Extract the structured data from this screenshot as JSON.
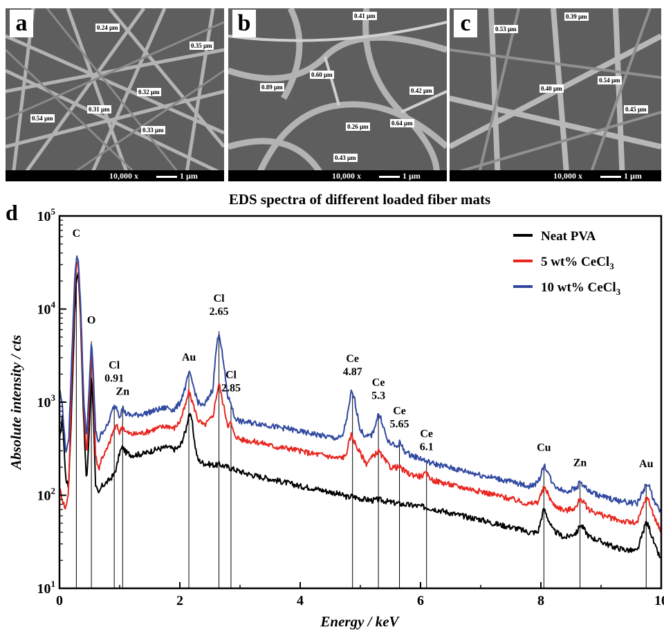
{
  "sem_panels": [
    {
      "letter": "a",
      "magnification": "10,000 x",
      "scale": "1 µm",
      "measurements": [
        "0.24 µm",
        "0.35 µm",
        "0.32 µm",
        "0.31 µm",
        "0.54 µm",
        "0.33 µm"
      ]
    },
    {
      "letter": "b",
      "magnification": "10,000 x",
      "scale": "1 µm",
      "measurements": [
        "0.41 µm",
        "0.60 µm",
        "0.89 µm",
        "0.42 µm",
        "0.64 µm",
        "0.26 µm",
        "0.43 µm"
      ]
    },
    {
      "letter": "c",
      "magnification": "10,000 x",
      "scale": "1 µm",
      "measurements": [
        "0.53 µm",
        "0.39 µm",
        "0.40 µm",
        "0.54 µm",
        "0.45 µm"
      ]
    }
  ],
  "chart_data": {
    "type": "line",
    "panel_letter": "d",
    "title": "EDS spectra of different loaded fiber mats",
    "xlabel": "Energy / keV",
    "ylabel": "Absolute intensity / cts",
    "xlim": [
      0,
      10
    ],
    "ylim": [
      10,
      100000
    ],
    "yscale": "log",
    "xticks": [
      "0",
      "2",
      "4",
      "6",
      "8",
      "10"
    ],
    "yticks": [
      {
        "base": "10",
        "exp": "1"
      },
      {
        "base": "10",
        "exp": "2"
      },
      {
        "base": "10",
        "exp": "3"
      },
      {
        "base": "10",
        "exp": "4"
      },
      {
        "base": "10",
        "exp": "5"
      }
    ],
    "legend_position": "top-right",
    "series": [
      {
        "name": "Neat PVA",
        "name_sub": "",
        "color": "#000000",
        "points": [
          [
            0.0,
            380
          ],
          [
            0.05,
            700
          ],
          [
            0.1,
            160
          ],
          [
            0.15,
            120
          ],
          [
            0.2,
            800
          ],
          [
            0.25,
            8000
          ],
          [
            0.28,
            20000
          ],
          [
            0.31,
            26000
          ],
          [
            0.35,
            8000
          ],
          [
            0.4,
            700
          ],
          [
            0.45,
            130
          ],
          [
            0.5,
            600
          ],
          [
            0.53,
            2000
          ],
          [
            0.56,
            900
          ],
          [
            0.6,
            130
          ],
          [
            0.65,
            100
          ],
          [
            0.7,
            125
          ],
          [
            0.8,
            140
          ],
          [
            0.9,
            165
          ],
          [
            0.95,
            200
          ],
          [
            1.0,
            290
          ],
          [
            1.05,
            330
          ],
          [
            1.1,
            290
          ],
          [
            1.2,
            270
          ],
          [
            1.4,
            280
          ],
          [
            1.6,
            310
          ],
          [
            1.8,
            330
          ],
          [
            1.9,
            310
          ],
          [
            2.0,
            330
          ],
          [
            2.1,
            500
          ],
          [
            2.15,
            750
          ],
          [
            2.2,
            650
          ],
          [
            2.25,
            350
          ],
          [
            2.3,
            240
          ],
          [
            2.4,
            220
          ],
          [
            2.6,
            210
          ],
          [
            2.65,
            215
          ],
          [
            2.8,
            200
          ],
          [
            3.0,
            180
          ],
          [
            3.2,
            165
          ],
          [
            3.4,
            155
          ],
          [
            3.6,
            145
          ],
          [
            3.8,
            135
          ],
          [
            4.0,
            125
          ],
          [
            4.2,
            120
          ],
          [
            4.4,
            112
          ],
          [
            4.6,
            105
          ],
          [
            4.8,
            95
          ],
          [
            4.85,
            98
          ],
          [
            5.0,
            92
          ],
          [
            5.2,
            88
          ],
          [
            5.3,
            90
          ],
          [
            5.5,
            84
          ],
          [
            5.7,
            80
          ],
          [
            6.0,
            76
          ],
          [
            6.2,
            72
          ],
          [
            6.4,
            67
          ],
          [
            6.6,
            62
          ],
          [
            6.8,
            58
          ],
          [
            7.0,
            55
          ],
          [
            7.2,
            50
          ],
          [
            7.4,
            47
          ],
          [
            7.6,
            44
          ],
          [
            7.8,
            40
          ],
          [
            7.95,
            40
          ],
          [
            8.05,
            72
          ],
          [
            8.1,
            60
          ],
          [
            8.2,
            42
          ],
          [
            8.4,
            35
          ],
          [
            8.6,
            40
          ],
          [
            8.65,
            48
          ],
          [
            8.7,
            45
          ],
          [
            8.8,
            36
          ],
          [
            9.0,
            32
          ],
          [
            9.2,
            28
          ],
          [
            9.4,
            26
          ],
          [
            9.6,
            25
          ],
          [
            9.75,
            52
          ],
          [
            9.8,
            45
          ],
          [
            9.9,
            28
          ],
          [
            10.0,
            20
          ]
        ]
      },
      {
        "name": "5 wt% CeCl",
        "name_sub": "3",
        "color": "#e8251f",
        "points": [
          [
            0.0,
            120
          ],
          [
            0.05,
            90
          ],
          [
            0.1,
            70
          ],
          [
            0.15,
            110
          ],
          [
            0.2,
            1500
          ],
          [
            0.25,
            15000
          ],
          [
            0.28,
            30000
          ],
          [
            0.31,
            32000
          ],
          [
            0.35,
            9000
          ],
          [
            0.4,
            1000
          ],
          [
            0.45,
            260
          ],
          [
            0.5,
            1200
          ],
          [
            0.53,
            4000
          ],
          [
            0.56,
            1800
          ],
          [
            0.6,
            270
          ],
          [
            0.65,
            190
          ],
          [
            0.7,
            250
          ],
          [
            0.8,
            320
          ],
          [
            0.9,
            500
          ],
          [
            0.95,
            560
          ],
          [
            1.0,
            470
          ],
          [
            1.05,
            560
          ],
          [
            1.1,
            480
          ],
          [
            1.2,
            450
          ],
          [
            1.4,
            470
          ],
          [
            1.6,
            520
          ],
          [
            1.8,
            560
          ],
          [
            1.9,
            520
          ],
          [
            2.0,
            620
          ],
          [
            2.1,
            950
          ],
          [
            2.15,
            1300
          ],
          [
            2.2,
            1050
          ],
          [
            2.3,
            650
          ],
          [
            2.4,
            560
          ],
          [
            2.55,
            700
          ],
          [
            2.6,
            1100
          ],
          [
            2.65,
            1600
          ],
          [
            2.7,
            1100
          ],
          [
            2.8,
            560
          ],
          [
            2.85,
            600
          ],
          [
            2.9,
            450
          ],
          [
            3.0,
            400
          ],
          [
            3.2,
            380
          ],
          [
            3.4,
            360
          ],
          [
            3.6,
            330
          ],
          [
            3.8,
            320
          ],
          [
            4.0,
            300
          ],
          [
            4.2,
            280
          ],
          [
            4.4,
            270
          ],
          [
            4.6,
            250
          ],
          [
            4.75,
            260
          ],
          [
            4.85,
            450
          ],
          [
            4.95,
            320
          ],
          [
            5.1,
            220
          ],
          [
            5.3,
            300
          ],
          [
            5.4,
            240
          ],
          [
            5.5,
            200
          ],
          [
            5.65,
            200
          ],
          [
            5.8,
            170
          ],
          [
            6.0,
            160
          ],
          [
            6.1,
            170
          ],
          [
            6.2,
            145
          ],
          [
            6.4,
            135
          ],
          [
            6.6,
            125
          ],
          [
            6.8,
            118
          ],
          [
            7.0,
            110
          ],
          [
            7.2,
            102
          ],
          [
            7.4,
            95
          ],
          [
            7.6,
            88
          ],
          [
            7.8,
            80
          ],
          [
            7.95,
            85
          ],
          [
            8.05,
            120
          ],
          [
            8.1,
            110
          ],
          [
            8.2,
            80
          ],
          [
            8.4,
            68
          ],
          [
            8.6,
            75
          ],
          [
            8.65,
            95
          ],
          [
            8.7,
            85
          ],
          [
            8.8,
            70
          ],
          [
            9.0,
            62
          ],
          [
            9.2,
            56
          ],
          [
            9.4,
            52
          ],
          [
            9.6,
            50
          ],
          [
            9.75,
            95
          ],
          [
            9.8,
            85
          ],
          [
            9.9,
            55
          ],
          [
            10.0,
            40
          ]
        ]
      },
      {
        "name": "10 wt% CeCl",
        "name_sub": "3",
        "color": "#3048a0",
        "points": [
          [
            0.0,
            1400
          ],
          [
            0.05,
            900
          ],
          [
            0.1,
            300
          ],
          [
            0.15,
            350
          ],
          [
            0.2,
            2500
          ],
          [
            0.25,
            20000
          ],
          [
            0.28,
            35000
          ],
          [
            0.31,
            36000
          ],
          [
            0.35,
            12000
          ],
          [
            0.4,
            1200
          ],
          [
            0.45,
            380
          ],
          [
            0.5,
            1800
          ],
          [
            0.53,
            4500
          ],
          [
            0.56,
            2200
          ],
          [
            0.6,
            480
          ],
          [
            0.65,
            380
          ],
          [
            0.7,
            470
          ],
          [
            0.8,
            560
          ],
          [
            0.9,
            900
          ],
          [
            0.95,
            900
          ],
          [
            1.0,
            700
          ],
          [
            1.05,
            880
          ],
          [
            1.1,
            750
          ],
          [
            1.2,
            720
          ],
          [
            1.4,
            750
          ],
          [
            1.6,
            820
          ],
          [
            1.8,
            880
          ],
          [
            1.9,
            820
          ],
          [
            2.0,
            980
          ],
          [
            2.1,
            1500
          ],
          [
            2.15,
            2100
          ],
          [
            2.2,
            1700
          ],
          [
            2.3,
            1000
          ],
          [
            2.4,
            900
          ],
          [
            2.55,
            1400
          ],
          [
            2.6,
            3500
          ],
          [
            2.65,
            5800
          ],
          [
            2.7,
            3500
          ],
          [
            2.8,
            1100
          ],
          [
            2.85,
            1000
          ],
          [
            2.9,
            700
          ],
          [
            3.0,
            620
          ],
          [
            3.2,
            600
          ],
          [
            3.4,
            580
          ],
          [
            3.6,
            540
          ],
          [
            3.8,
            520
          ],
          [
            4.0,
            480
          ],
          [
            4.2,
            460
          ],
          [
            4.4,
            430
          ],
          [
            4.6,
            410
          ],
          [
            4.7,
            420
          ],
          [
            4.8,
            800
          ],
          [
            4.85,
            1300
          ],
          [
            4.9,
            1100
          ],
          [
            5.0,
            500
          ],
          [
            5.1,
            420
          ],
          [
            5.2,
            450
          ],
          [
            5.3,
            750
          ],
          [
            5.35,
            650
          ],
          [
            5.45,
            380
          ],
          [
            5.6,
            330
          ],
          [
            5.65,
            370
          ],
          [
            5.75,
            290
          ],
          [
            5.9,
            260
          ],
          [
            6.0,
            250
          ],
          [
            6.1,
            230
          ],
          [
            6.2,
            220
          ],
          [
            6.4,
            205
          ],
          [
            6.6,
            190
          ],
          [
            6.8,
            178
          ],
          [
            7.0,
            165
          ],
          [
            7.2,
            155
          ],
          [
            7.4,
            145
          ],
          [
            7.6,
            135
          ],
          [
            7.8,
            125
          ],
          [
            7.95,
            135
          ],
          [
            8.05,
            210
          ],
          [
            8.1,
            190
          ],
          [
            8.2,
            130
          ],
          [
            8.4,
            110
          ],
          [
            8.6,
            120
          ],
          [
            8.65,
            140
          ],
          [
            8.7,
            130
          ],
          [
            8.8,
            110
          ],
          [
            9.0,
            98
          ],
          [
            9.2,
            90
          ],
          [
            9.4,
            85
          ],
          [
            9.6,
            82
          ],
          [
            9.75,
            130
          ],
          [
            9.8,
            125
          ],
          [
            9.9,
            80
          ],
          [
            10.0,
            65
          ]
        ]
      }
    ],
    "peak_lines": [
      0.28,
      0.53,
      0.91,
      1.05,
      2.15,
      2.65,
      2.85,
      4.87,
      5.3,
      5.65,
      6.1,
      8.05,
      8.65,
      9.75
    ],
    "annotations": [
      {
        "lines": [
          "C"
        ],
        "x": 0.28,
        "y": 60000
      },
      {
        "lines": [
          "O"
        ],
        "x": 0.53,
        "y": 7000
      },
      {
        "lines": [
          "Cl",
          "0.91"
        ],
        "x": 0.91,
        "y": 2300
      },
      {
        "lines": [
          "Zn"
        ],
        "x": 1.05,
        "y": 1200
      },
      {
        "lines": [
          "Au"
        ],
        "x": 2.15,
        "y": 2800
      },
      {
        "lines": [
          "Cl",
          "2.65"
        ],
        "x": 2.65,
        "y": 12000
      },
      {
        "lines": [
          "Cl",
          "2.85"
        ],
        "x": 2.85,
        "y": 1800
      },
      {
        "lines": [
          "Ce",
          "4.87"
        ],
        "x": 4.87,
        "y": 2700
      },
      {
        "lines": [
          "Ce",
          "5.3"
        ],
        "x": 5.3,
        "y": 1500
      },
      {
        "lines": [
          "Ce",
          "5.65"
        ],
        "x": 5.65,
        "y": 740
      },
      {
        "lines": [
          "Ce",
          "6.1"
        ],
        "x": 6.1,
        "y": 420
      },
      {
        "lines": [
          "Cu"
        ],
        "x": 8.05,
        "y": 300
      },
      {
        "lines": [
          "Zn"
        ],
        "x": 8.65,
        "y": 205
      },
      {
        "lines": [
          "Au"
        ],
        "x": 9.75,
        "y": 200
      }
    ]
  }
}
